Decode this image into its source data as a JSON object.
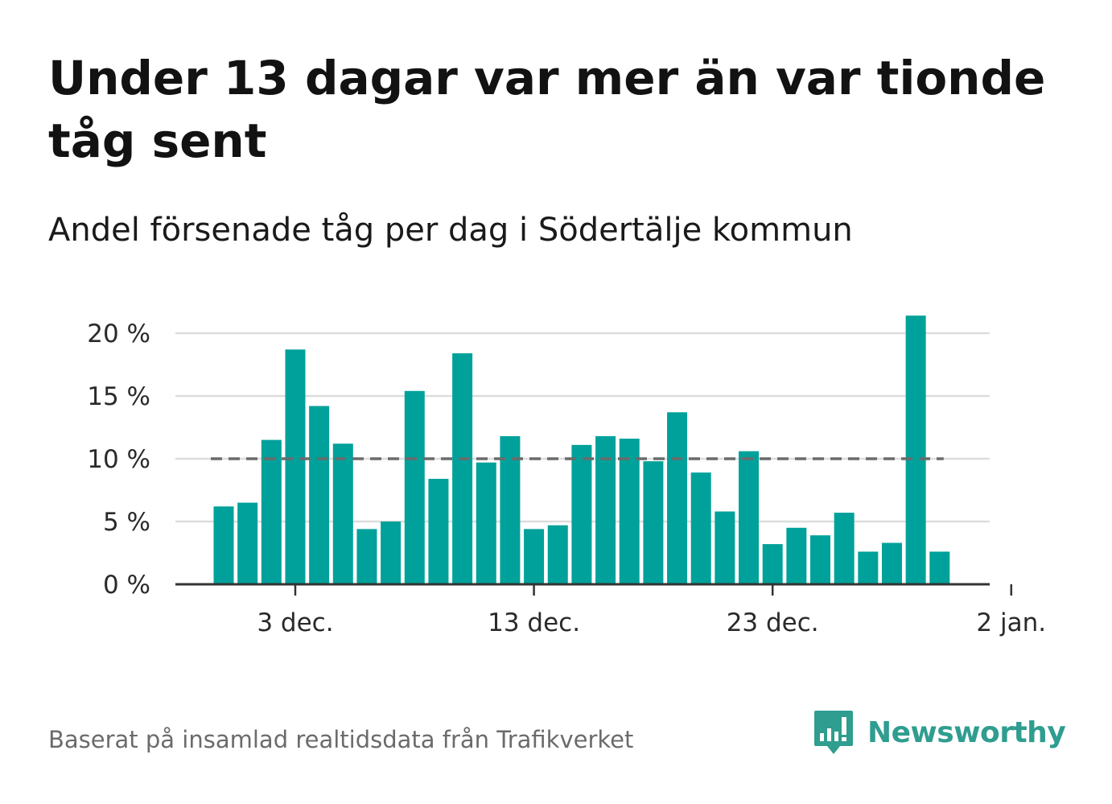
{
  "header": {
    "title": "Under 13 dagar var mer än var tionde tåg sent",
    "subtitle": "Andel försenade tåg per dag i Södertälje kommun"
  },
  "footer": {
    "source": "Baserat på insamlad realtidsdata från Trafikverket",
    "brand": "Newsworthy",
    "brand_icon": "bar-chart-speech-bubble-icon"
  },
  "colors": {
    "bar": "#00a19a",
    "reference_line": "#6b6b6b",
    "grid": "#dddddd",
    "axis": "#333333",
    "brand": "#2f9d8f"
  },
  "chart_data": {
    "type": "bar",
    "title": "Under 13 dagar var mer än var tionde tåg sent",
    "subtitle": "Andel försenade tåg per dag i Södertälje kommun",
    "xlabel": "",
    "ylabel": "",
    "x_start": "2023-11-30",
    "values": [
      6.2,
      6.5,
      11.5,
      18.7,
      14.2,
      11.2,
      4.4,
      5.0,
      15.4,
      8.4,
      18.4,
      9.7,
      11.8,
      4.4,
      4.7,
      11.1,
      11.8,
      11.6,
      9.8,
      13.7,
      8.9,
      5.8,
      10.6,
      3.2,
      4.5,
      3.9,
      5.7,
      2.6,
      3.3,
      21.4,
      2.6
    ],
    "ylim": [
      0,
      20
    ],
    "y_ticks": [
      0,
      5,
      10,
      15,
      20
    ],
    "y_tick_labels": [
      "0 %",
      "5 %",
      "10 %",
      "15 %",
      "20 %"
    ],
    "x_ticks": [
      {
        "day_index": 3,
        "label": "3 dec."
      },
      {
        "day_index": 13,
        "label": "13 dec."
      },
      {
        "day_index": 23,
        "label": "23 dec."
      },
      {
        "day_index": 33,
        "label": "2 jan."
      }
    ],
    "reference_line": {
      "value": 10,
      "style": "dashed"
    },
    "grid": true,
    "legend": "none"
  }
}
